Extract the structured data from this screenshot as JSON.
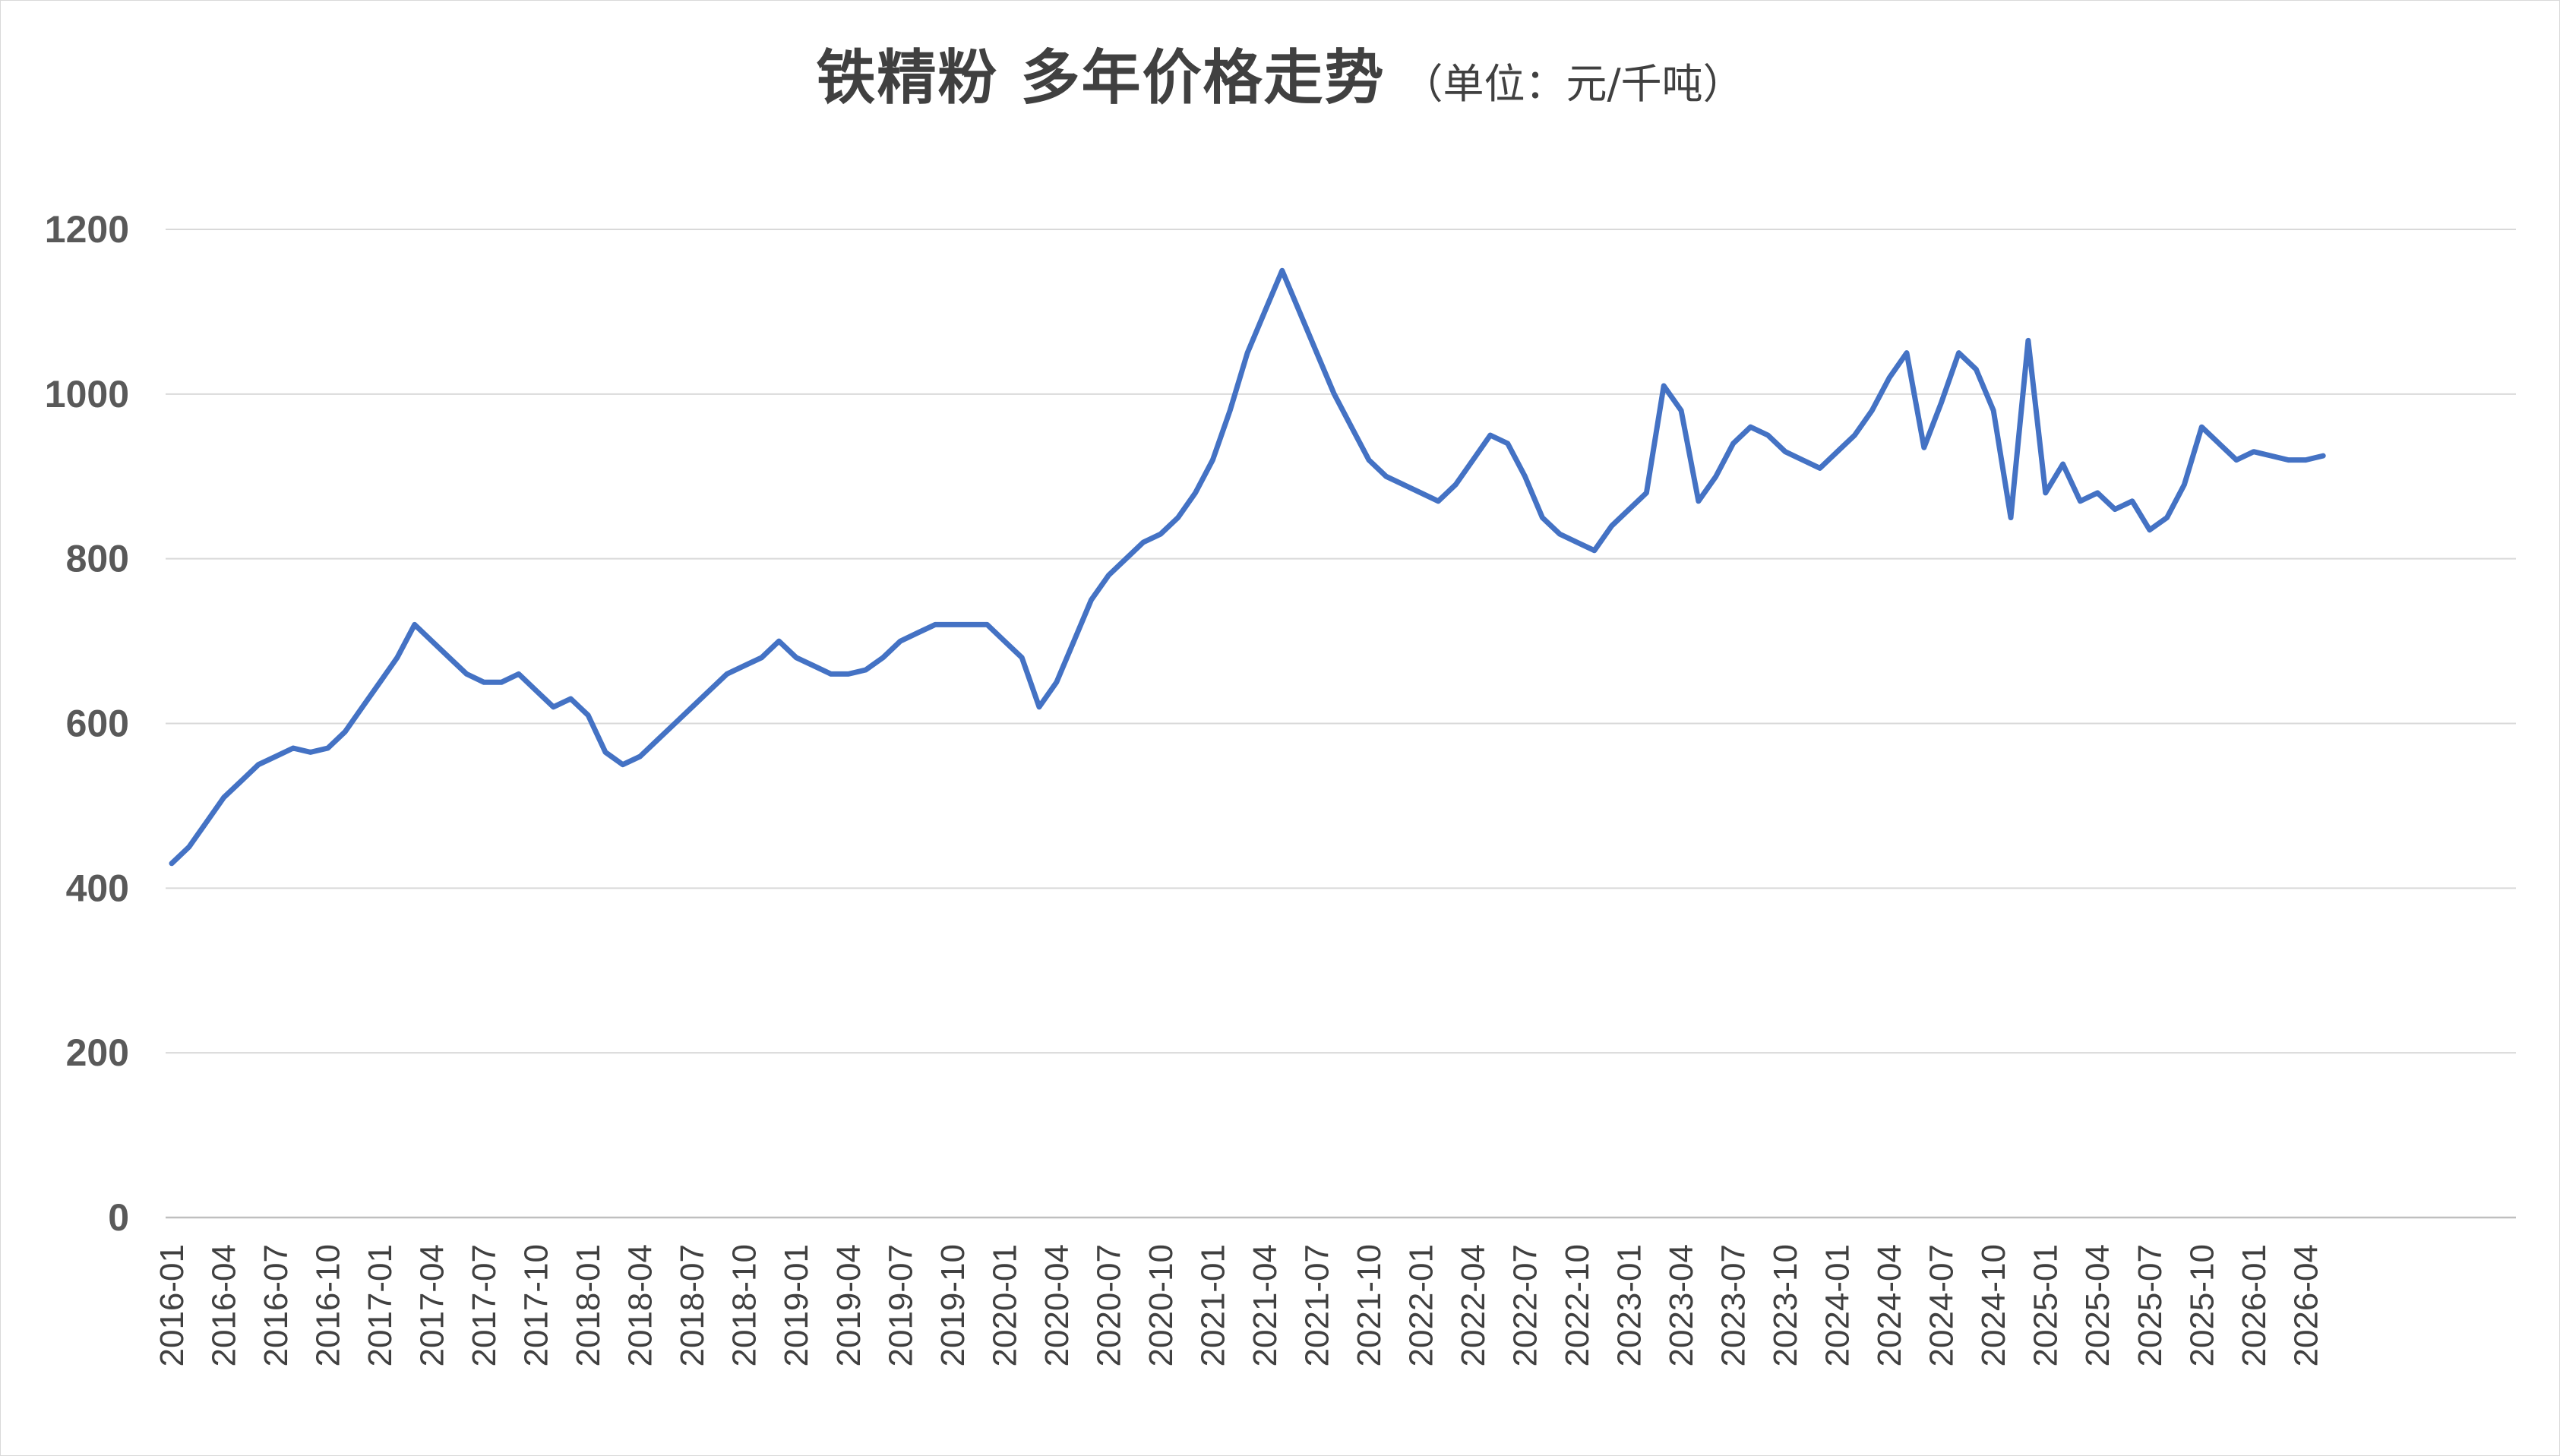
{
  "chart_data": {
    "type": "line",
    "title": "铁精粉 多年价格走势",
    "subtitle": "（单位：元/千吨）",
    "xlabel": "",
    "ylabel": "",
    "ylim": [
      0,
      1200
    ],
    "y_ticks": [
      "0",
      "200",
      "400",
      "600",
      "800",
      "1000",
      "1200"
    ],
    "grid": "horizontal",
    "legend": "none",
    "x_tick_labels": [
      "2016-01",
      "2016-04",
      "2016-07",
      "2016-10",
      "2017-01",
      "2017-04",
      "2017-07",
      "2017-10",
      "2018-01",
      "2018-04",
      "2018-07",
      "2018-10",
      "2019-01",
      "2019-04",
      "2019-07",
      "2019-10",
      "2020-01",
      "2020-04",
      "2020-07",
      "2020-10",
      "2021-01",
      "2021-04",
      "2021-07",
      "2021-10",
      "2022-01",
      "2022-04",
      "2022-07",
      "2022-10",
      "2023-01",
      "2023-04",
      "2023-07",
      "2023-10",
      "2024-01",
      "2024-04",
      "2024-07",
      "2024-10",
      "2025-01",
      "2025-04",
      "2025-07",
      "2025-10",
      "2026-01",
      "2026-04"
    ],
    "x_start": "2016-01",
    "x_end": "2026-05",
    "colors": {
      "series": "#4472c4",
      "grid": "#d9d9d9",
      "text": "#404040"
    },
    "series": [
      {
        "points": [
          [
            "2016-01",
            430
          ],
          [
            "2016-02",
            450
          ],
          [
            "2016-03",
            480
          ],
          [
            "2016-04",
            510
          ],
          [
            "2016-05",
            530
          ],
          [
            "2016-06",
            550
          ],
          [
            "2016-07",
            560
          ],
          [
            "2016-08",
            570
          ],
          [
            "2016-09",
            565
          ],
          [
            "2016-10",
            570
          ],
          [
            "2016-11",
            590
          ],
          [
            "2016-12",
            620
          ],
          [
            "2017-01",
            650
          ],
          [
            "2017-02",
            680
          ],
          [
            "2017-03",
            720
          ],
          [
            "2017-04",
            700
          ],
          [
            "2017-05",
            680
          ],
          [
            "2017-06",
            660
          ],
          [
            "2017-07",
            650
          ],
          [
            "2017-08",
            650
          ],
          [
            "2017-09",
            660
          ],
          [
            "2017-10",
            640
          ],
          [
            "2017-11",
            620
          ],
          [
            "2017-12",
            630
          ],
          [
            "2018-01",
            610
          ],
          [
            "2018-02",
            565
          ],
          [
            "2018-03",
            550
          ],
          [
            "2018-04",
            560
          ],
          [
            "2018-05",
            580
          ],
          [
            "2018-06",
            600
          ],
          [
            "2018-07",
            620
          ],
          [
            "2018-08",
            640
          ],
          [
            "2018-09",
            660
          ],
          [
            "2018-10",
            670
          ],
          [
            "2018-11",
            680
          ],
          [
            "2018-12",
            700
          ],
          [
            "2019-01",
            680
          ],
          [
            "2019-02",
            670
          ],
          [
            "2019-03",
            660
          ],
          [
            "2019-04",
            660
          ],
          [
            "2019-05",
            665
          ],
          [
            "2019-06",
            680
          ],
          [
            "2019-07",
            700
          ],
          [
            "2019-08",
            710
          ],
          [
            "2019-09",
            720
          ],
          [
            "2019-10",
            720
          ],
          [
            "2019-11",
            720
          ],
          [
            "2019-12",
            720
          ],
          [
            "2020-01",
            700
          ],
          [
            "2020-02",
            680
          ],
          [
            "2020-03",
            620
          ],
          [
            "2020-04",
            650
          ],
          [
            "2020-05",
            700
          ],
          [
            "2020-06",
            750
          ],
          [
            "2020-07",
            780
          ],
          [
            "2020-08",
            800
          ],
          [
            "2020-09",
            820
          ],
          [
            "2020-10",
            830
          ],
          [
            "2020-11",
            850
          ],
          [
            "2020-12",
            880
          ],
          [
            "2021-01",
            920
          ],
          [
            "2021-02",
            980
          ],
          [
            "2021-03",
            1050
          ],
          [
            "2021-04",
            1100
          ],
          [
            "2021-05",
            1150
          ],
          [
            "2021-06",
            1100
          ],
          [
            "2021-07",
            1050
          ],
          [
            "2021-08",
            1000
          ],
          [
            "2021-09",
            960
          ],
          [
            "2021-10",
            920
          ],
          [
            "2021-11",
            900
          ],
          [
            "2021-12",
            890
          ],
          [
            "2022-01",
            880
          ],
          [
            "2022-02",
            870
          ],
          [
            "2022-03",
            890
          ],
          [
            "2022-04",
            920
          ],
          [
            "2022-05",
            950
          ],
          [
            "2022-06",
            940
          ],
          [
            "2022-07",
            900
          ],
          [
            "2022-08",
            850
          ],
          [
            "2022-09",
            830
          ],
          [
            "2022-10",
            820
          ],
          [
            "2022-11",
            810
          ],
          [
            "2022-12",
            840
          ],
          [
            "2023-01",
            860
          ],
          [
            "2023-02",
            880
          ],
          [
            "2023-03",
            1010
          ],
          [
            "2023-04",
            980
          ],
          [
            "2023-05",
            870
          ],
          [
            "2023-06",
            900
          ],
          [
            "2023-07",
            940
          ],
          [
            "2023-08",
            960
          ],
          [
            "2023-09",
            950
          ],
          [
            "2023-10",
            930
          ],
          [
            "2023-11",
            920
          ],
          [
            "2023-12",
            910
          ],
          [
            "2024-01",
            930
          ],
          [
            "2024-02",
            950
          ],
          [
            "2024-03",
            980
          ],
          [
            "2024-04",
            1020
          ],
          [
            "2024-05",
            1050
          ],
          [
            "2024-06",
            935
          ],
          [
            "2024-07",
            990
          ],
          [
            "2024-08",
            1050
          ],
          [
            "2024-09",
            1030
          ],
          [
            "2024-10",
            980
          ],
          [
            "2024-11",
            850
          ],
          [
            "2024-12",
            1065
          ],
          [
            "2025-01",
            880
          ],
          [
            "2025-02",
            915
          ],
          [
            "2025-03",
            870
          ],
          [
            "2025-04",
            880
          ],
          [
            "2025-05",
            860
          ],
          [
            "2025-06",
            870
          ],
          [
            "2025-07",
            835
          ],
          [
            "2025-08",
            850
          ],
          [
            "2025-09",
            890
          ],
          [
            "2025-10",
            960
          ],
          [
            "2025-11",
            940
          ],
          [
            "2025-12",
            920
          ],
          [
            "2026-01",
            930
          ],
          [
            "2026-02",
            925
          ],
          [
            "2026-03",
            920
          ],
          [
            "2026-04",
            920
          ],
          [
            "2026-05",
            925
          ]
        ]
      }
    ]
  }
}
